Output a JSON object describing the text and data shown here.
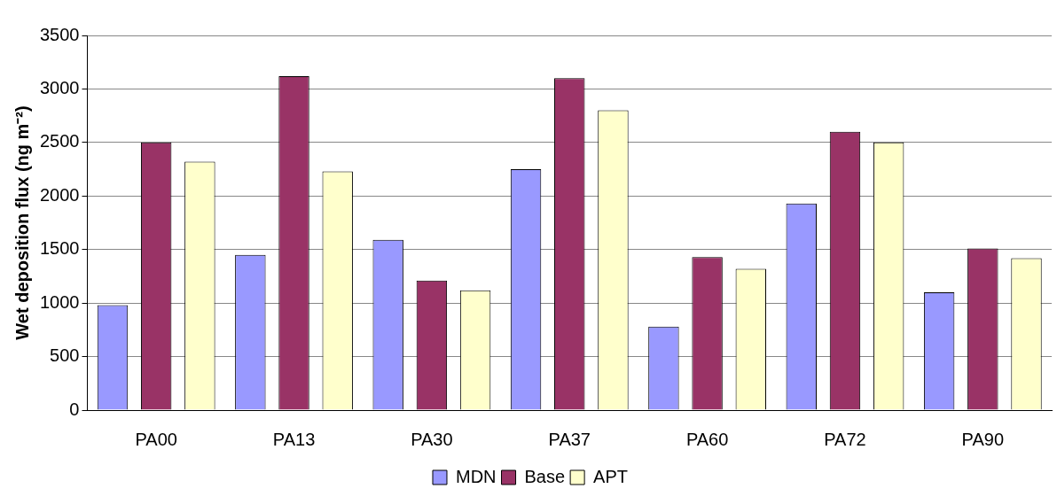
{
  "chart_data": {
    "type": "bar",
    "ylabel": "Wet deposition flux (ng m⁻²)",
    "categories": [
      "PA00",
      "PA13",
      "PA30",
      "PA37",
      "PA60",
      "PA72",
      "PA90"
    ],
    "series": [
      {
        "name": "MDN",
        "color": "#9999ff",
        "values": [
          980,
          1450,
          1590,
          2250,
          780,
          1930,
          1100
        ]
      },
      {
        "name": "Base",
        "color": "#993366",
        "values": [
          2500,
          3120,
          1210,
          3100,
          1430,
          2600,
          1510
        ]
      },
      {
        "name": "APT",
        "color": "#ffffcc",
        "values": [
          2320,
          2230,
          1120,
          2800,
          1320,
          2500,
          1420
        ]
      }
    ],
    "ylim": [
      0,
      3500
    ],
    "yticks": [
      0,
      500,
      1000,
      1500,
      2000,
      2500,
      3000,
      3500
    ],
    "grid": "y",
    "legend": "bottom"
  }
}
